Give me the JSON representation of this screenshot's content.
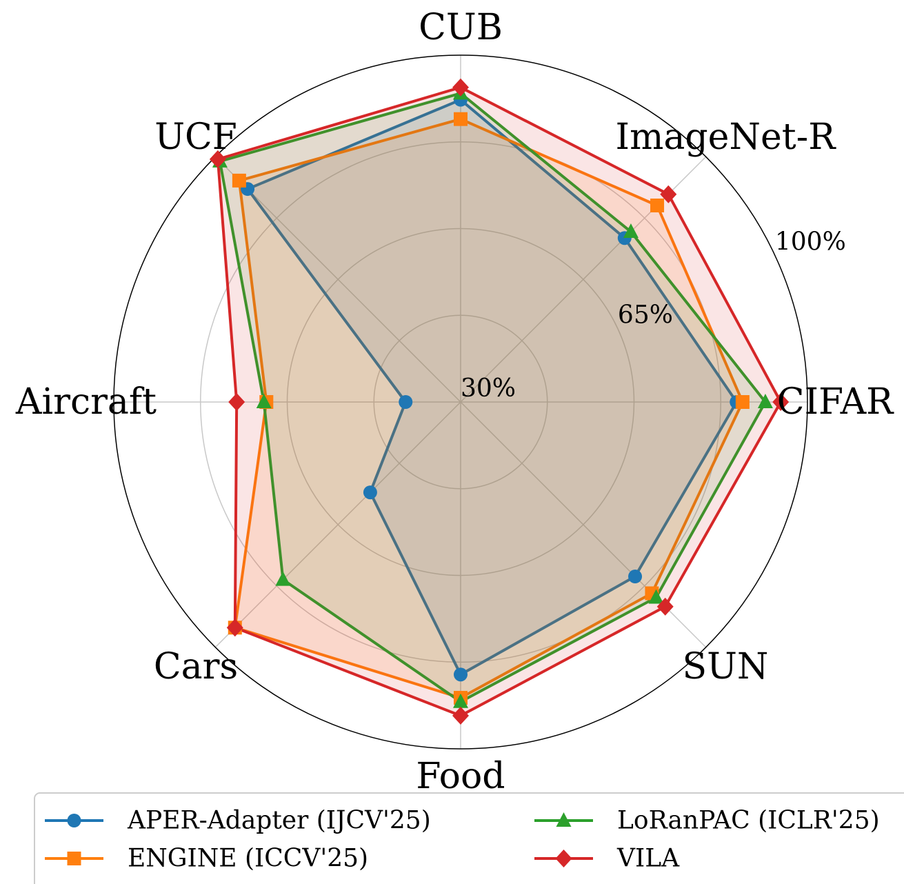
{
  "chart_data": {
    "type": "radar",
    "categories": [
      "CIFAR",
      "ImageNet-R",
      "CUB",
      "UCF",
      "Aircraft",
      "Cars",
      "Food",
      "SUN"
    ],
    "ylim": [
      30,
      100
    ],
    "yticks": [
      {
        "value": 30,
        "label": "30%"
      },
      {
        "value": 65,
        "label": "65%"
      },
      {
        "value": 100,
        "label": "100%"
      }
    ],
    "minor_yticks": [
      47.5,
      82.5
    ],
    "grid": true,
    "legend": "lower center",
    "series": [
      {
        "name": "APER-Adapter (IJCV'25)",
        "color": "#1f77b4",
        "marker": "circle",
        "values": [
          85.7,
          76.8,
          91.0,
          90.8,
          41.1,
          55.8,
          85.0,
          79.8
        ]
      },
      {
        "name": "ENGINE (ICCV'25)",
        "color": "#ff7f0e",
        "marker": "square",
        "values": [
          86.9,
          86.1,
          87.1,
          93.2,
          69.2,
          94.4,
          89.7,
          84.6
        ]
      },
      {
        "name": "LoRanPAC (ICLR'25)",
        "color": "#2ca02c",
        "marker": "triangle",
        "values": [
          91.5,
          78.6,
          92.3,
          98.7,
          69.7,
          80.7,
          90.5,
          85.8
        ]
      },
      {
        "name": "VILA",
        "color": "#d62728",
        "marker": "diamond",
        "values": [
          94.6,
          89.3,
          93.5,
          99.3,
          75.2,
          94.4,
          93.3,
          88.4
        ]
      }
    ]
  }
}
